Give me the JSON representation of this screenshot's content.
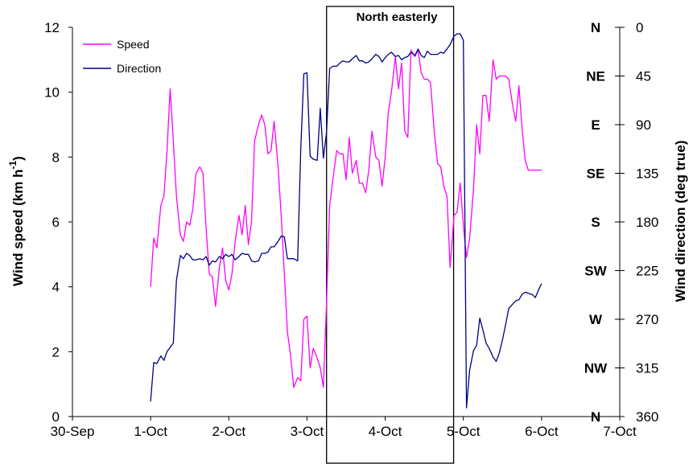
{
  "chart_data": {
    "type": "line",
    "annotation": "North easterly",
    "annotation_x_range": [
      "3-Oct 6:00",
      "4-Oct 21:00"
    ],
    "legend": {
      "placement": "top-left",
      "entries": [
        "Speed",
        "Direction"
      ]
    },
    "x_axis": {
      "label": "",
      "tick_labels": [
        "30-Sep",
        "1-Oct",
        "2-Oct",
        "3-Oct",
        "4-Oct",
        "5-Oct",
        "6-Oct",
        "7-Oct"
      ],
      "range_days": [
        0,
        7
      ]
    },
    "y_left": {
      "label": "Wind speed (km h",
      "label_superscript": "-1",
      "label_close": ")",
      "range": [
        0,
        12
      ],
      "tick_labels": [
        "0",
        "2",
        "4",
        "6",
        "8",
        "10",
        "12"
      ]
    },
    "y_right": {
      "label": "Wind direction (deg true)",
      "range": [
        0,
        360
      ],
      "inverted": true,
      "tick_labels": [
        "0",
        "45",
        "90",
        "135",
        "180",
        "225",
        "270",
        "315",
        "360"
      ],
      "compass_labels": [
        "N",
        "NE",
        "E",
        "SE",
        "S",
        "SW",
        "W",
        "NW",
        "N"
      ]
    },
    "grid": false,
    "series": [
      {
        "name": "Speed",
        "color": "#ff00ff",
        "axis": "left",
        "x": [
          1.0,
          1.04,
          1.08,
          1.13,
          1.17,
          1.21,
          1.25,
          1.29,
          1.33,
          1.38,
          1.42,
          1.46,
          1.5,
          1.54,
          1.58,
          1.63,
          1.67,
          1.71,
          1.75,
          1.79,
          1.83,
          1.88,
          1.92,
          1.96,
          2.0,
          2.04,
          2.08,
          2.13,
          2.17,
          2.21,
          2.25,
          2.29,
          2.33,
          2.38,
          2.42,
          2.46,
          2.5,
          2.54,
          2.58,
          2.63,
          2.67,
          2.71,
          2.75,
          2.79,
          2.83,
          2.88,
          2.92,
          2.96,
          3.0,
          3.04,
          3.08,
          3.13,
          3.17,
          3.21,
          3.25,
          3.29,
          3.33,
          3.38,
          3.42,
          3.46,
          3.5,
          3.54,
          3.58,
          3.63,
          3.67,
          3.71,
          3.75,
          3.79,
          3.83,
          3.88,
          3.92,
          3.96,
          4.0,
          4.04,
          4.08,
          4.13,
          4.17,
          4.21,
          4.25,
          4.29,
          4.33,
          4.38,
          4.42,
          4.46,
          4.5,
          4.54,
          4.58,
          4.63,
          4.67,
          4.71,
          4.75,
          4.79,
          4.83,
          4.88,
          4.92,
          4.96,
          5.0,
          5.04,
          5.08,
          5.13,
          5.17,
          5.21,
          5.25,
          5.29,
          5.33,
          5.38,
          5.42,
          5.46,
          5.5,
          5.54,
          5.58,
          5.63,
          5.67,
          5.71,
          5.75,
          5.79,
          5.83,
          5.88,
          5.92,
          5.96,
          6.0
        ],
        "values": [
          4.0,
          5.5,
          5.2,
          6.5,
          6.8,
          8.2,
          10.1,
          8.5,
          6.8,
          5.6,
          5.4,
          6.0,
          5.9,
          6.4,
          7.5,
          7.7,
          7.5,
          5.8,
          4.4,
          4.3,
          3.4,
          4.6,
          5.2,
          4.2,
          3.9,
          4.4,
          5.4,
          6.2,
          5.6,
          6.5,
          5.3,
          6.0,
          8.5,
          9.0,
          9.3,
          9.0,
          8.1,
          8.2,
          9.1,
          7.7,
          6.2,
          4.4,
          2.6,
          1.9,
          0.9,
          1.2,
          1.1,
          3.0,
          3.1,
          1.5,
          2.1,
          1.8,
          1.5,
          0.9,
          3.5,
          6.5,
          7.3,
          8.2,
          8.1,
          8.1,
          7.3,
          8.6,
          7.5,
          7.9,
          7.2,
          7.2,
          6.9,
          7.6,
          8.8,
          8.0,
          7.9,
          7.1,
          8.0,
          9.4,
          10.0,
          11.1,
          10.1,
          10.9,
          8.8,
          8.6,
          11.3,
          11.1,
          11.3,
          10.6,
          10.4,
          10.4,
          10.3,
          8.7,
          7.8,
          7.7,
          7.1,
          6.8,
          4.6,
          6.2,
          6.3,
          7.2,
          5.9,
          4.9,
          5.5,
          7.0,
          9.0,
          8.1,
          9.9,
          9.9,
          9.1,
          11.0,
          10.4,
          10.5,
          10.5,
          10.5,
          10.4,
          9.6,
          9.1,
          10.2,
          8.9,
          7.9,
          7.6,
          7.6,
          7.6,
          7.6,
          7.6
        ]
      },
      {
        "name": "Direction",
        "color": "#000080",
        "axis": "right",
        "x": [
          1.0,
          1.04,
          1.08,
          1.13,
          1.17,
          1.21,
          1.25,
          1.29,
          1.33,
          1.38,
          1.42,
          1.46,
          1.5,
          1.54,
          1.58,
          1.63,
          1.67,
          1.71,
          1.75,
          1.79,
          1.83,
          1.88,
          1.92,
          1.96,
          2.0,
          2.04,
          2.08,
          2.13,
          2.17,
          2.21,
          2.25,
          2.29,
          2.33,
          2.38,
          2.42,
          2.46,
          2.5,
          2.54,
          2.58,
          2.63,
          2.67,
          2.71,
          2.75,
          2.79,
          2.83,
          2.88,
          2.92,
          2.96,
          3.0,
          3.04,
          3.08,
          3.13,
          3.17,
          3.21,
          3.25,
          3.29,
          3.33,
          3.38,
          3.42,
          3.46,
          3.5,
          3.54,
          3.58,
          3.63,
          3.67,
          3.71,
          3.75,
          3.79,
          3.83,
          3.88,
          3.92,
          3.96,
          4.0,
          4.04,
          4.08,
          4.13,
          4.17,
          4.21,
          4.25,
          4.29,
          4.33,
          4.38,
          4.42,
          4.46,
          4.5,
          4.54,
          4.58,
          4.63,
          4.67,
          4.71,
          4.75,
          4.79,
          4.83,
          4.88,
          4.92,
          4.96,
          5.0,
          5.04,
          5.08,
          5.13,
          5.17,
          5.21,
          5.25,
          5.29,
          5.33,
          5.38,
          5.42,
          5.46,
          5.5,
          5.54,
          5.58,
          5.63,
          5.67,
          5.71,
          5.75,
          5.79,
          5.83,
          5.88,
          5.92,
          5.96,
          6.0
        ],
        "values": [
          346,
          310,
          311,
          304,
          308,
          300,
          296,
          292,
          234,
          211,
          214,
          209,
          211,
          215,
          215,
          214,
          215,
          212,
          220,
          216,
          217,
          212,
          214,
          210,
          212,
          210,
          215,
          212,
          209,
          210,
          210,
          216,
          217,
          216,
          209,
          209,
          208,
          203,
          203,
          198,
          193,
          194,
          214,
          214,
          214,
          216,
          112,
          43,
          42,
          119,
          122,
          123,
          75,
          121,
          97,
          38,
          36,
          36,
          33,
          31,
          32,
          32,
          29,
          26,
          31,
          31,
          33,
          32,
          29,
          25,
          27,
          32,
          28,
          25,
          23,
          27,
          26,
          30,
          28,
          27,
          23,
          26,
          20,
          26,
          28,
          22,
          25,
          25,
          25,
          23,
          24,
          20,
          16,
          8,
          6,
          6,
          12,
          352,
          317,
          299,
          294,
          269,
          280,
          292,
          297,
          305,
          309,
          301,
          289,
          275,
          260,
          256,
          253,
          252,
          247,
          245,
          246,
          247,
          250,
          243,
          237
        ]
      }
    ]
  }
}
